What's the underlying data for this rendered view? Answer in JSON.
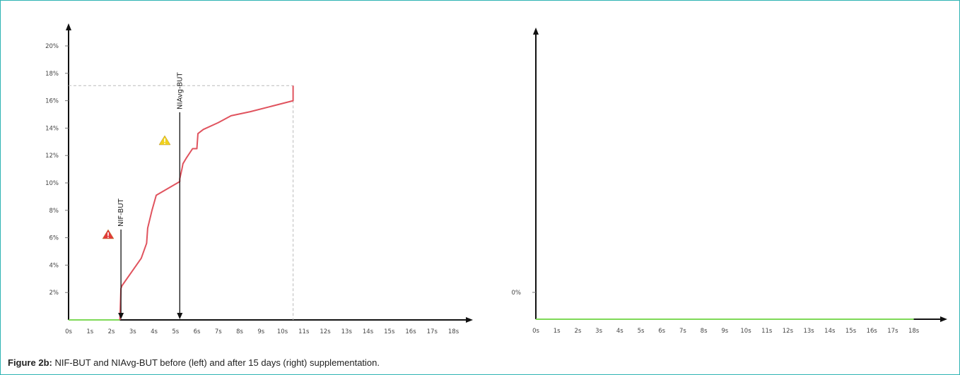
{
  "caption": {
    "label": "Figure 2b:",
    "text": " NIF-BUT and NIAvg-BUT before (left) and after 15 days (right) supplementation."
  },
  "colors": {
    "curve": "#e0535e",
    "baseline": "#7ed957",
    "axis": "#111111",
    "tick_text": "#444444",
    "dashed": "#bbbbbb",
    "warning_red": "#e23a3a",
    "warning_yellow": "#f1d21c"
  },
  "chart_data": [
    {
      "type": "line",
      "panel": "left",
      "title": "",
      "xlabel": "",
      "ylabel": "",
      "x_ticks": [
        "0s",
        "1s",
        "2s",
        "3s",
        "4s",
        "5s",
        "6s",
        "7s",
        "8s",
        "9s",
        "10s",
        "11s",
        "12s",
        "13s",
        "14s",
        "15s",
        "16s",
        "17s",
        "18s"
      ],
      "y_ticks": [
        "2%",
        "4%",
        "6%",
        "8%",
        "10%",
        "12%",
        "14%",
        "16%",
        "18%",
        "20%"
      ],
      "xlim": [
        0,
        18.5
      ],
      "ylim": [
        0,
        21
      ],
      "baseline": {
        "x": [
          0,
          2.4
        ],
        "y": [
          0,
          0
        ]
      },
      "series": [
        {
          "x": [
            2.4,
            2.45,
            2.5,
            3.4,
            3.65,
            3.7,
            3.9,
            4.1,
            5.2,
            5.2,
            5.3,
            5.35,
            5.5,
            5.8,
            6.0,
            6.05,
            6.3,
            7.0,
            7.6,
            8.5,
            9.5,
            10.5,
            10.5
          ],
          "y": [
            0,
            2.3,
            2.5,
            4.5,
            5.6,
            6.7,
            8.0,
            9.1,
            10.1,
            10.3,
            11.0,
            11.4,
            11.8,
            12.5,
            12.5,
            13.6,
            13.9,
            14.4,
            14.9,
            15.2,
            15.6,
            16.0,
            17.1
          ]
        }
      ],
      "markers": [
        {
          "x": 2.45,
          "label": "NIF-BUT",
          "icon": "red-warning-icon"
        },
        {
          "x": 5.2,
          "label": "NIAvg-BUT",
          "icon": "yellow-warning-icon"
        }
      ],
      "reference_y": 17.1,
      "reference_x": 10.5
    },
    {
      "type": "line",
      "panel": "right",
      "title": "",
      "xlabel": "",
      "ylabel": "",
      "x_ticks": [
        "0s",
        "1s",
        "2s",
        "3s",
        "4s",
        "5s",
        "6s",
        "7s",
        "8s",
        "9s",
        "10s",
        "11s",
        "12s",
        "13s",
        "14s",
        "15s",
        "16s",
        "17s",
        "18s"
      ],
      "y_ticks": [
        "0%"
      ],
      "xlim": [
        0,
        18.5
      ],
      "baseline": {
        "x": [
          0,
          18
        ],
        "y": [
          0,
          0
        ]
      }
    }
  ]
}
